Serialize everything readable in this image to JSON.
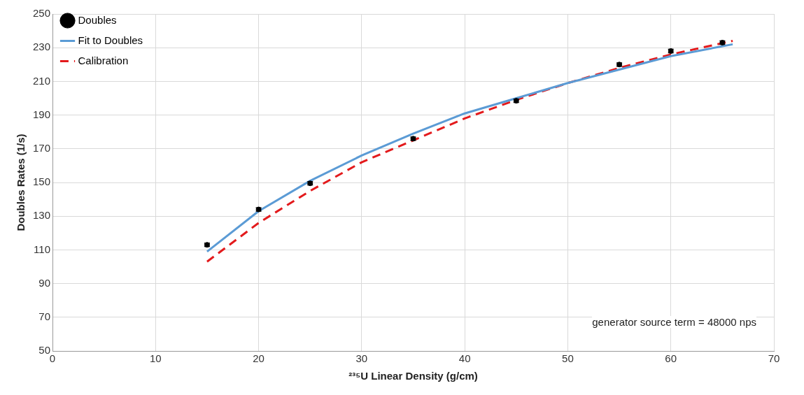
{
  "chart_data": {
    "type": "scatter",
    "xlabel": "²³⁵U Linear Density (g/cm)",
    "ylabel": "Doubles Rates (1/s)",
    "xlim": [
      0,
      70
    ],
    "xticks": [
      0,
      10,
      20,
      30,
      40,
      50,
      60,
      70
    ],
    "ylim": [
      50,
      250
    ],
    "yticks": [
      50,
      70,
      90,
      110,
      130,
      150,
      170,
      190,
      210,
      230,
      250
    ],
    "grid": true,
    "legend": "top left",
    "annotations": [
      "generator source term = 48000 nps"
    ],
    "series": [
      {
        "name": "Doubles",
        "type": "scatter",
        "color": "#000000",
        "marker": "circle",
        "x": [
          15,
          20,
          25,
          35,
          45,
          55,
          60,
          65
        ],
        "values": [
          113,
          134,
          149.5,
          176,
          198.5,
          220,
          228,
          233
        ],
        "errors": [
          1,
          1,
          1,
          1,
          1,
          1,
          1,
          1
        ]
      },
      {
        "name": "Fit to Doubles",
        "type": "line",
        "color": "#5b9bd5",
        "line_style": "solid",
        "marker": "none",
        "x": [
          15,
          20,
          25,
          30,
          35,
          40,
          45,
          50,
          55,
          60,
          66
        ],
        "values": [
          109,
          133,
          151,
          166,
          179,
          191,
          200,
          209,
          217,
          225,
          232
        ]
      },
      {
        "name": "Calibration",
        "type": "line",
        "color": "#e31a1c",
        "line_style": "dashed",
        "marker": "none",
        "x": [
          15,
          20,
          25,
          30,
          35,
          40,
          45,
          50,
          55,
          60,
          66
        ],
        "values": [
          103,
          126,
          145,
          162,
          175,
          188,
          199,
          209,
          218,
          226,
          234
        ]
      }
    ]
  }
}
